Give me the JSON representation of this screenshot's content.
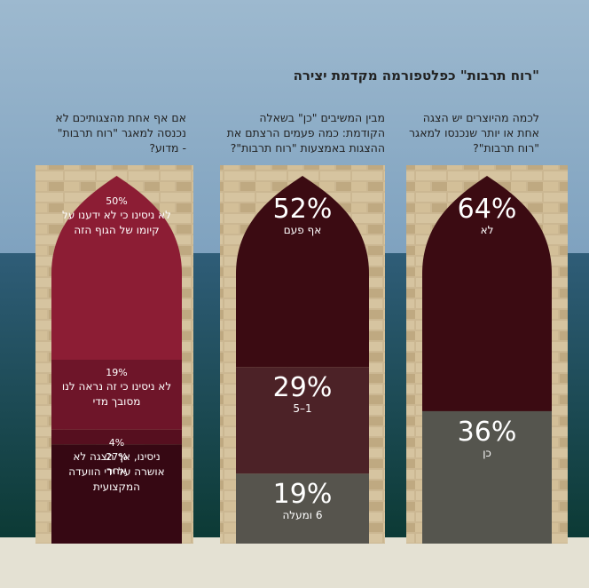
{
  "title": "\"רוח תרבות\" כפלטפורמה מקדמת יצירה",
  "chart_data": [
    {
      "type": "stacked-column",
      "title": "לכמה מהיוצרים יש הצגה אחת או יותר שנכנסו למאגר \"רוח תרבות\"?",
      "categories": [
        "לא",
        "כן"
      ],
      "values": [
        64,
        36
      ],
      "value_labels": [
        "64%",
        "36%"
      ],
      "colors": [
        "#3b0b12",
        "#55554e"
      ]
    },
    {
      "type": "stacked-column",
      "title": "מבין המשיבים \"כן\" בשאלה הקודמת: כמה פעמים הרצתם את ההצגות באמצעות \"רוח תרבות\"?",
      "categories": [
        "אף פעם",
        "1–5",
        "6 ומעלה"
      ],
      "values": [
        52,
        29,
        19
      ],
      "value_labels": [
        "52%",
        "29%",
        "19%"
      ],
      "colors": [
        "#3b0b12",
        "#4c2227",
        "#56544d"
      ]
    },
    {
      "type": "stacked-column",
      "title": "אם אף אחת מהצגותיכם לא נכנסה למאגר \"רוח תרבות\" - מדוע?",
      "categories": [
        "לא ניסינו כי לא ידענו על קיומו של הגוף הזה",
        "לא ניסינו כי זה נראה לנו מסובך מדי",
        "ניסינו, אך הצגה לא אושרה על ידי הוועדה המקצועית",
        "אחר"
      ],
      "values": [
        50,
        19,
        4,
        27
      ],
      "value_labels": [
        "50%",
        "19%",
        "4%",
        "27%"
      ],
      "colors": [
        "#8c1d34",
        "#6e1529",
        "#560f1f",
        "#360813"
      ]
    }
  ]
}
